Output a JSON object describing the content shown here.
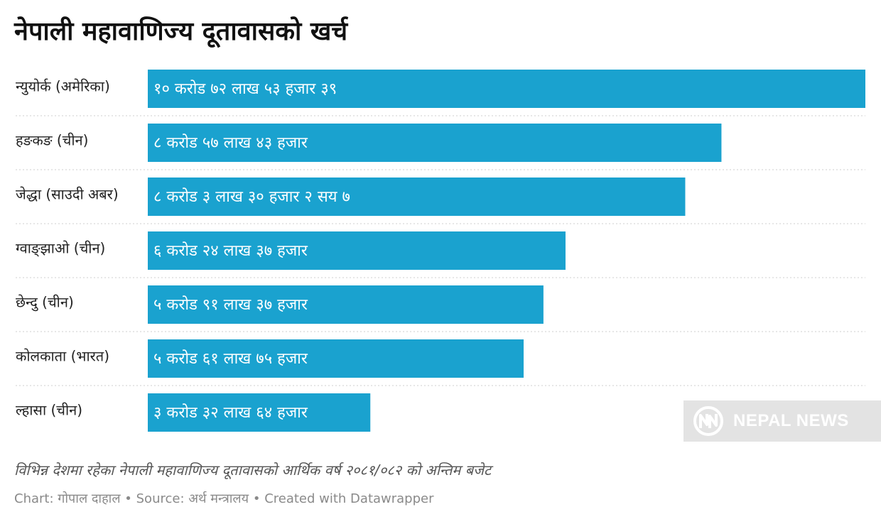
{
  "title": "नेपाली महावाणिज्य दूतावासको खर्च",
  "description": "विभिन्न देशमा रहेका नेपाली महावाणिज्य दूतावासको आर्थिक वर्ष २०८१/०८२ को अन्तिम बजेट",
  "credits": {
    "chart_prefix": "Chart:",
    "chart_author": "गोपाल दाहाल",
    "source_prefix": "Source:",
    "source_name": "अर्थ मन्त्रालय",
    "created_with": "Created with Datawrapper",
    "separator": "•"
  },
  "watermark": {
    "text": "NEPAL NEWS",
    "icon": "nepal-news-logo-icon"
  },
  "colors": {
    "bar": "#1aa2cf",
    "separator": "#cfcfcf"
  },
  "chart_data": {
    "type": "bar",
    "orientation": "horizontal",
    "categories": [
      "न्युयोर्क (अमेरिका)",
      "हङकङ (चीन)",
      "जेद्धा (साउदी अबर)",
      "ग्वाङ्झाओ (चीन)",
      "छेन्दु (चीन)",
      "कोलकाता (भारत)",
      "ल्हासा (चीन)"
    ],
    "values": [
      107253039,
      85743000,
      80330207,
      62437000,
      59137000,
      56175000,
      33264000
    ],
    "value_labels": [
      "१० करोड ७२ लाख ५३ हजार ३९",
      "८ करोड ५७ लाख ४३ हजार",
      "८ करोड ३ लाख ३० हजार २ सय ७",
      "६ करोड २४ लाख ३७ हजार",
      "५ करोड ९१ लाख ३७ हजार",
      "५ करोड ६१ लाख ७५ हजार",
      "३ करोड ३२ लाख ६४ हजार"
    ],
    "xlim": [
      0,
      107253039
    ],
    "grid": false,
    "legend": "none"
  }
}
